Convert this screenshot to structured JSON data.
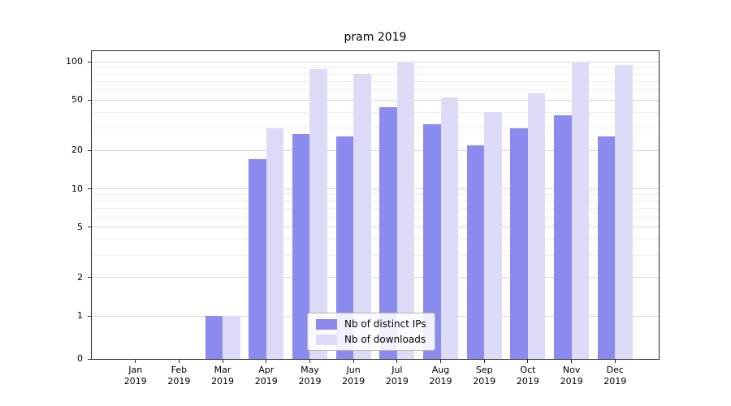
{
  "chart_data": {
    "type": "bar",
    "title": "pram 2019",
    "categories": [
      "Jan",
      "Feb",
      "Mar",
      "Apr",
      "May",
      "Jun",
      "Jul",
      "Aug",
      "Sep",
      "Oct",
      "Nov",
      "Dec"
    ],
    "year": "2019",
    "series": [
      {
        "name": "Nb of distinct IPs",
        "color": "#8b8bef",
        "values": [
          0,
          0,
          1,
          17,
          27,
          26,
          44,
          32,
          22,
          30,
          38,
          26
        ]
      },
      {
        "name": "Nb of downloads",
        "color": "#dcdcf9",
        "values": [
          0,
          0,
          1,
          30,
          88,
          80,
          100,
          52,
          40,
          56,
          100,
          95
        ]
      }
    ],
    "y_ticks": [
      0,
      1,
      2,
      5,
      10,
      20,
      50,
      100
    ],
    "y_minor_ticks": [
      3,
      4,
      6,
      7,
      8,
      9,
      30,
      40,
      60,
      70,
      80,
      90
    ],
    "yscale": "symlog",
    "ylim": [
      0,
      120
    ],
    "grid": "on",
    "legend_position": "lower center"
  }
}
